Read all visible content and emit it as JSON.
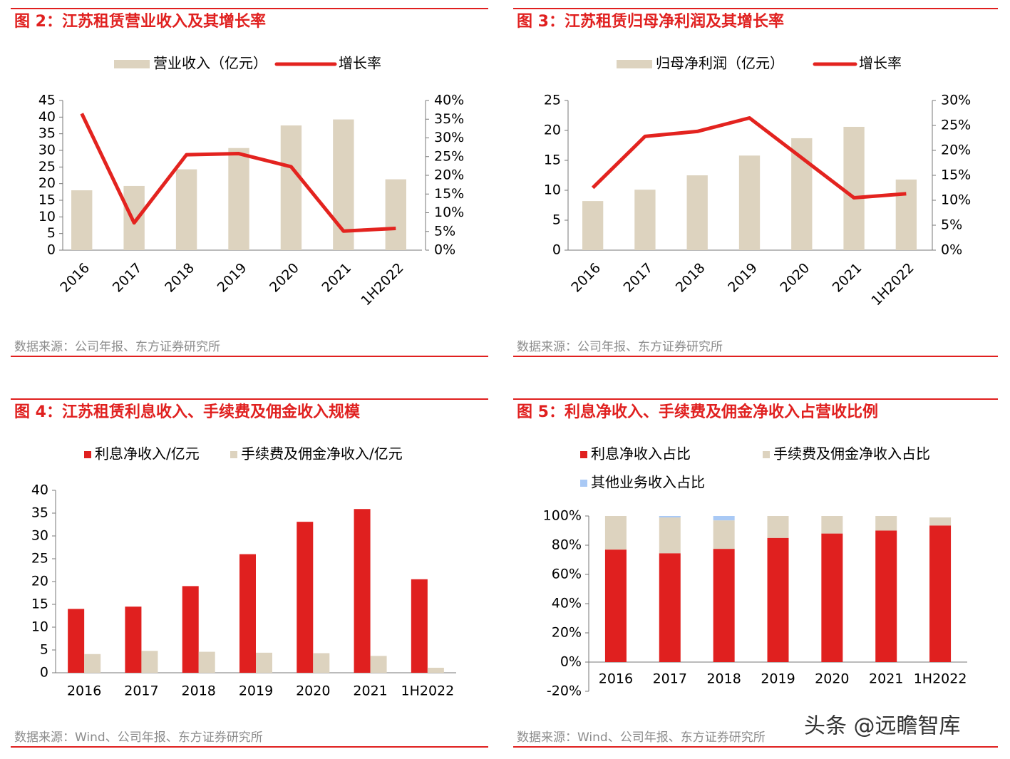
{
  "chart_data": [
    {
      "type": "combo",
      "title": "图 2：江苏租赁营业收入及其增长率",
      "source": "数据来源：公司年报、东方证券研究所",
      "categories": [
        "2016",
        "2017",
        "2018",
        "2019",
        "2020",
        "2021",
        "1H2022"
      ],
      "series": [
        {
          "name": "营业收入（亿元）",
          "color": "#ddd3bf",
          "values": [
            18,
            19.3,
            24.3,
            30.7,
            37.5,
            39.3,
            21.3
          ]
        },
        {
          "name": "增长率",
          "color": "#e3231f",
          "type": "line",
          "axis": "y2",
          "values": [
            36.5,
            7.3,
            25.5,
            25.8,
            22.3,
            5.1,
            5.8
          ]
        }
      ],
      "ylim": [
        0,
        45
      ],
      "yticks": [
        0,
        5,
        10,
        15,
        20,
        25,
        30,
        35,
        40,
        45
      ],
      "y2lim": [
        0,
        40
      ],
      "y2ticks": [
        {
          "value": 0,
          "label": "0%"
        },
        {
          "value": 5,
          "label": "5%"
        },
        {
          "value": 10,
          "label": "10%"
        },
        {
          "value": 15,
          "label": "15%"
        },
        {
          "value": 20,
          "label": "20%"
        },
        {
          "value": 25,
          "label": "25%"
        },
        {
          "value": 30,
          "label": "30%"
        },
        {
          "value": 35,
          "label": "35%"
        },
        {
          "value": 40,
          "label": "40%"
        }
      ]
    },
    {
      "type": "combo",
      "title": "图 3：江苏租赁归母净利润及其增长率",
      "source": "数据来源：公司年报、东方证券研究所",
      "categories": [
        "2016",
        "2017",
        "2018",
        "2019",
        "2020",
        "2021",
        "1H2022"
      ],
      "series": [
        {
          "name": "归母净利润（亿元）",
          "color": "#ddd3bf",
          "values": [
            8.2,
            10.1,
            12.5,
            15.8,
            18.7,
            20.6,
            11.8
          ]
        },
        {
          "name": "增长率",
          "color": "#e3231f",
          "type": "line",
          "axis": "y2",
          "values": [
            12.5,
            22.8,
            23.8,
            26.5,
            18.5,
            10.5,
            11.3
          ]
        }
      ],
      "ylim": [
        0,
        25
      ],
      "yticks": [
        0,
        5,
        10,
        15,
        20,
        25
      ],
      "y2lim": [
        0,
        30
      ],
      "y2ticks": [
        {
          "value": 0,
          "label": "0%"
        },
        {
          "value": 5,
          "label": "5%"
        },
        {
          "value": 10,
          "label": "10%"
        },
        {
          "value": 15,
          "label": "15%"
        },
        {
          "value": 20,
          "label": "20%"
        },
        {
          "value": 25,
          "label": "25%"
        },
        {
          "value": 30,
          "label": "30%"
        }
      ]
    },
    {
      "type": "bar",
      "title": "图 4：江苏租赁利息收入、手续费及佣金收入规模",
      "source": "数据来源：Wind、公司年报、东方证券研究所",
      "categories": [
        "2016",
        "2017",
        "2018",
        "2019",
        "2020",
        "2021",
        "1H2022"
      ],
      "series": [
        {
          "name": "利息净收入/亿元",
          "color": "#e0201f",
          "values": [
            14,
            14.5,
            19,
            26,
            33.1,
            35.9,
            20.5
          ]
        },
        {
          "name": "手续费及佣金净收入/亿元",
          "color": "#ddd3bf",
          "values": [
            4.1,
            4.8,
            4.6,
            4.4,
            4.3,
            3.7,
            1.1
          ]
        }
      ],
      "ylim": [
        0,
        40
      ],
      "yticks": [
        0,
        5,
        10,
        15,
        20,
        25,
        30,
        35,
        40
      ]
    },
    {
      "type": "stacked_bar",
      "title": "图 5：利息净收入、手续费及佣金净收入占营收比例",
      "source": "数据来源：Wind、公司年报、东方证券研究所",
      "categories": [
        "2016",
        "2017",
        "2018",
        "2019",
        "2020",
        "2021",
        "1H2022"
      ],
      "series": [
        {
          "name": "利息净收入占比",
          "color": "#e0201f",
          "values": [
            77,
            74.5,
            77.5,
            85,
            88,
            90,
            93.5
          ]
        },
        {
          "name": "手续费及佣金净收入占比",
          "color": "#ddd3bf",
          "values": [
            23,
            24.5,
            19.5,
            15,
            12,
            10,
            5.5
          ]
        },
        {
          "name": "其他业务收入占比",
          "color": "#a9c9f5",
          "values": [
            0,
            1,
            3,
            0,
            0,
            0,
            0
          ]
        }
      ],
      "ylim": [
        -20,
        100
      ],
      "yticks": [
        {
          "value": -20,
          "label": "-20%"
        },
        {
          "value": 0,
          "label": "0%"
        },
        {
          "value": 20,
          "label": "20%"
        },
        {
          "value": 40,
          "label": "40%"
        },
        {
          "value": 60,
          "label": "60%"
        },
        {
          "value": 80,
          "label": "80%"
        },
        {
          "value": 100,
          "label": "100%"
        }
      ]
    }
  ],
  "watermark": "头条 @远瞻智库"
}
